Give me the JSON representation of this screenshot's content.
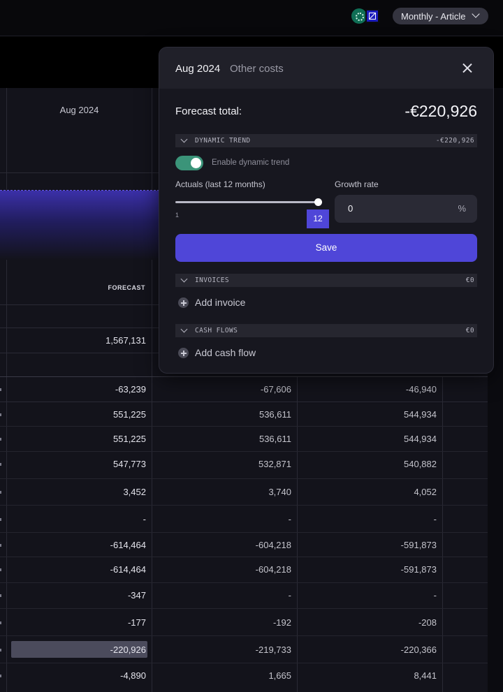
{
  "header": {
    "view_select": "Monthly - Article",
    "bank_icons": [
      "globe-bank-icon",
      "blue-square-bank-icon"
    ]
  },
  "table": {
    "month_header": "Aug 2024",
    "forecast_label": "FORECAST",
    "summary_value": "1,567,131",
    "rows": [
      [
        "-63,239",
        "-67,606",
        "-46,940"
      ],
      [
        "551,225",
        "536,611",
        "544,934"
      ],
      [
        "551,225",
        "536,611",
        "544,934"
      ],
      [
        "547,773",
        "532,871",
        "540,882"
      ],
      [
        "3,452",
        "3,740",
        "4,052"
      ],
      [
        "-",
        "-",
        "-"
      ],
      [
        "-614,464",
        "-604,218",
        "-591,873"
      ],
      [
        "-614,464",
        "-604,218",
        "-591,873"
      ],
      [
        "-347",
        "-",
        "-"
      ],
      [
        "-177",
        "-192",
        "-208"
      ],
      [
        "-220,926",
        "-219,733",
        "-220,366"
      ],
      [
        "-4,890",
        "1,665",
        "8,441"
      ]
    ]
  },
  "panel": {
    "month": "Aug 2024",
    "category": "Other costs",
    "forecast_total_label": "Forecast total:",
    "forecast_total_value": "-€220,926",
    "dynamic_trend": {
      "title": "DYNAMIC TREND",
      "value": "-€220,926",
      "toggle_label": "Enable dynamic trend",
      "toggle_on": true,
      "actuals_label": "Actuals (last 12 months)",
      "slider_min": "1",
      "slider_value": "12",
      "growth_label": "Growth rate",
      "growth_value": "0",
      "growth_unit": "%"
    },
    "save_label": "Save",
    "invoices": {
      "title": "INVOICES",
      "value": "€0",
      "add_label": "Add invoice"
    },
    "cash_flows": {
      "title": "CASH FLOWS",
      "value": "€0",
      "add_label": "Add cash flow"
    }
  }
}
